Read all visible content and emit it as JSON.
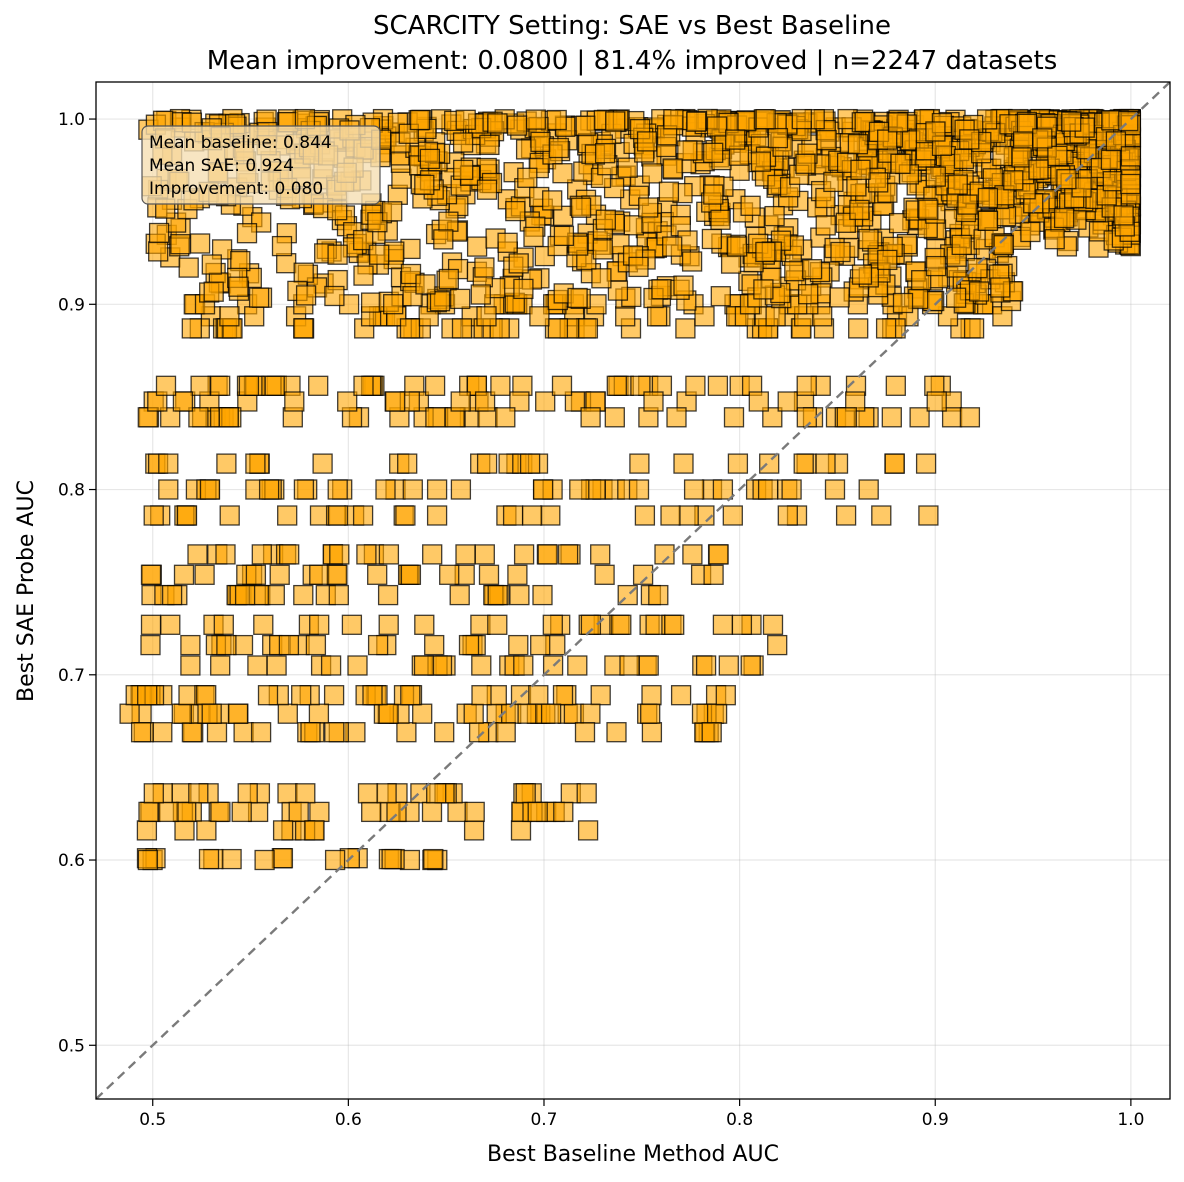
{
  "chart_data": {
    "type": "scatter",
    "title_line1": "SCARCITY Setting: SAE vs Best Baseline",
    "title_line2": "Mean improvement: 0.0800 | 81.4% improved | n=2247 datasets",
    "xlabel": "Best Baseline Method AUC",
    "ylabel": "Best SAE Probe AUC",
    "xlim": [
      0.471,
      1.02
    ],
    "ylim": [
      0.471,
      1.02
    ],
    "xticks": [
      "0.5",
      "0.6",
      "0.7",
      "0.8",
      "0.9",
      "1.0"
    ],
    "yticks": [
      "0.5",
      "0.6",
      "0.7",
      "0.8",
      "0.9",
      "1.0"
    ],
    "grid": true,
    "marker": "square",
    "marker_color": "#FFA500",
    "marker_edge_color": "#000000",
    "reference_line": "y = x (dashed gray)",
    "stats_box": {
      "line1": "Mean baseline: 0.844",
      "line2": "Mean SAE: 0.924",
      "line3": "Improvement: 0.080"
    },
    "row_bands": [
      {
        "y": [
          0.6,
          0.601
        ],
        "x": [
          0.497,
          0.648
        ],
        "count": 20
      },
      {
        "y": [
          0.616,
          0.636
        ],
        "x": [
          0.497,
          0.742
        ],
        "count": 60
      },
      {
        "y": [
          0.669,
          0.689
        ],
        "x": [
          0.488,
          0.796
        ],
        "count": 95
      },
      {
        "y": [
          0.705,
          0.727
        ],
        "x": [
          0.497,
          0.823
        ],
        "count": 75
      },
      {
        "y": [
          0.743,
          0.765
        ],
        "x": [
          0.497,
          0.791
        ],
        "count": 75
      },
      {
        "y": [
          0.786,
          0.814
        ],
        "x": [
          0.497,
          0.898
        ],
        "count": 95
      },
      {
        "y": [
          0.839,
          0.856
        ],
        "x": [
          0.497,
          0.926
        ],
        "count": 110
      },
      {
        "y": [
          0.887,
          0.9
        ],
        "x": [
          0.518,
          0.94
        ],
        "count": 110
      },
      {
        "y": [
          0.9,
          1.0
        ],
        "x": [
          0.497,
          1.0
        ],
        "count": 1607
      }
    ]
  }
}
